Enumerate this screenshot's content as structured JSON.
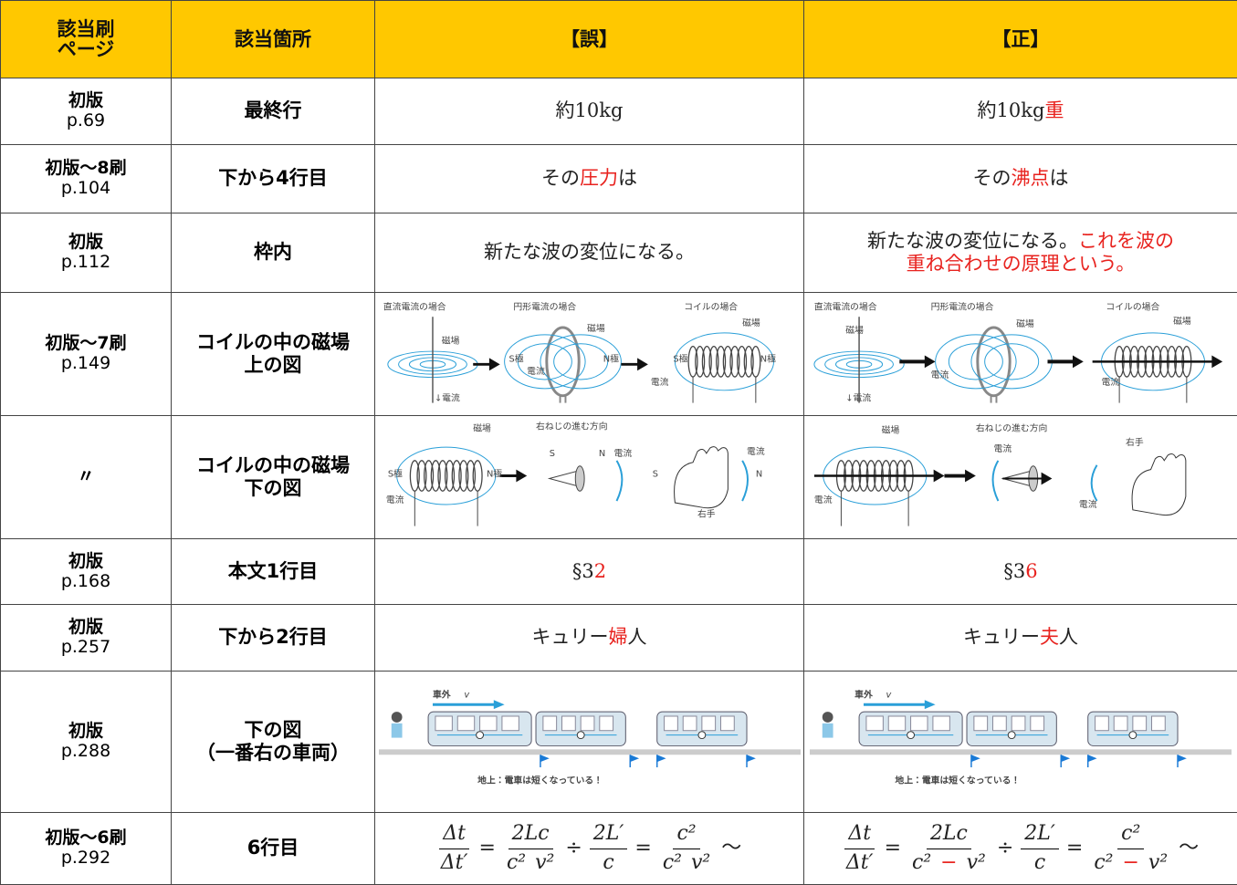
{
  "table": {
    "header": [
      [
        "該当刷",
        "ページ"
      ],
      [
        "該当箇所"
      ],
      [
        "【誤】"
      ],
      [
        "【正】"
      ]
    ],
    "rows": [
      {
        "page": [
          "初版",
          "p.69"
        ],
        "location": [
          "最終行"
        ],
        "wrong": {
          "lines": [
            [
              {
                "text": "約10kg"
              }
            ]
          ]
        },
        "correct": {
          "lines": [
            [
              {
                "text": "約10kg"
              },
              {
                "text": "重",
                "color": "#e8231f"
              }
            ]
          ]
        }
      },
      {
        "page": [
          "初版〜8刷",
          "p.104"
        ],
        "location": [
          "下から4行目"
        ],
        "wrong": {
          "lines": [
            [
              {
                "text": "その"
              },
              {
                "text": "圧力",
                "color": "#e8231f"
              },
              {
                "text": "は"
              }
            ]
          ]
        },
        "correct": {
          "lines": [
            [
              {
                "text": "その"
              },
              {
                "text": "沸点",
                "color": "#e8231f"
              },
              {
                "text": "は"
              }
            ]
          ]
        }
      },
      {
        "page": [
          "初版",
          "p.112"
        ],
        "location": [
          "枠内"
        ],
        "wrong": {
          "lines": [
            [
              {
                "text": "新たな波の変位になる。"
              }
            ]
          ]
        },
        "correct": {
          "lines": [
            [
              {
                "text": "新たな波の変位になる。"
              },
              {
                "text": "これを波の",
                "color": "#e8231f"
              }
            ],
            [
              {
                "text": "重ね合わせの原理という。",
                "color": "#e8231f"
              }
            ]
          ]
        }
      },
      {
        "page": [
          "初版〜7刷",
          "p.149"
        ],
        "location": [
          "コイルの中の磁場",
          "上の図"
        ],
        "wrong": {
          "labels": [
            "直流電流の場合",
            "磁場",
            "↓電流",
            "円形電流の場合",
            "磁場",
            "S極",
            "N極",
            "電流",
            "コイルの場合",
            "磁場",
            "S極",
            "N極",
            "電流"
          ]
        },
        "correct": {
          "labels": [
            "直流電流の場合",
            "磁場",
            "↓電流",
            "円形電流の場合",
            "磁場",
            "電流",
            "コイルの場合",
            "磁場",
            "電流"
          ]
        }
      },
      {
        "page": [
          "〃"
        ],
        "location": [
          "コイルの中の磁場",
          "下の図"
        ],
        "wrong": {
          "labels": [
            "磁場",
            "S極",
            "N極",
            "電流",
            "右ねじの進む方向",
            "S",
            "N",
            "電流",
            "S",
            "N",
            "電流",
            "右手"
          ]
        },
        "correct": {
          "labels": [
            "磁場",
            "電流",
            "右ねじの進む方向",
            "電流",
            "右手",
            "電流"
          ]
        }
      },
      {
        "page": [
          "初版",
          "p.168"
        ],
        "location": [
          "本文1行目"
        ],
        "wrong": {
          "lines": [
            [
              {
                "text": "§3"
              },
              {
                "text": "2",
                "color": "#e8231f"
              }
            ]
          ]
        },
        "correct": {
          "lines": [
            [
              {
                "text": "§3"
              },
              {
                "text": "6",
                "color": "#e8231f"
              }
            ]
          ]
        }
      },
      {
        "page": [
          "初版",
          "p.257"
        ],
        "location": [
          "下から2行目"
        ],
        "wrong": {
          "lines": [
            [
              {
                "text": "キュリー"
              },
              {
                "text": "婦",
                "color": "#e8231f"
              },
              {
                "text": "人"
              }
            ]
          ]
        },
        "correct": {
          "lines": [
            [
              {
                "text": "キュリー"
              },
              {
                "text": "夫",
                "color": "#e8231f"
              },
              {
                "text": "人"
              }
            ]
          ]
        }
      },
      {
        "page": [
          "初版",
          "p.288"
        ],
        "location": [
          "下の図",
          "（一番右の車両）"
        ],
        "wrong": {
          "labels": [
            "車外",
            "v",
            "地上：電車は短くなっている！"
          ]
        },
        "correct": {
          "labels": [
            "車外",
            "v",
            "地上：電車は短くなっている！"
          ]
        }
      },
      {
        "page": [
          "初版〜6刷",
          "p.292"
        ],
        "location": [
          "6行目"
        ],
        "wrong": {
          "formula": [
            {
              "num": [
                {
                  "text": "Δt"
                }
              ],
              "den": [
                {
                  "text": "Δt′"
                }
              ]
            },
            {
              "op": "="
            },
            {
              "num": [
                {
                  "text": "2Lc"
                }
              ],
              "den": [
                {
                  "text": "c²"
                },
                {
                  "text": "v²"
                }
              ]
            },
            {
              "op": "÷"
            },
            {
              "num": [
                {
                  "text": "2L′"
                }
              ],
              "den": [
                {
                  "text": "c"
                }
              ]
            },
            {
              "op": "="
            },
            {
              "num": [
                {
                  "text": "c²"
                }
              ],
              "den": [
                {
                  "text": "c²"
                },
                {
                  "text": "v²"
                }
              ]
            },
            {
              "op": "〜"
            }
          ]
        },
        "correct": {
          "formula": [
            {
              "num": [
                {
                  "text": "Δt"
                }
              ],
              "den": [
                {
                  "text": "Δt′"
                }
              ]
            },
            {
              "op": "="
            },
            {
              "num": [
                {
                  "text": "2Lc"
                }
              ],
              "den": [
                {
                  "text": "c²"
                },
                {
                  "text": "−",
                  "color": "#e8231f"
                },
                {
                  "text": "v²"
                }
              ]
            },
            {
              "op": "÷"
            },
            {
              "num": [
                {
                  "text": "2L′"
                }
              ],
              "den": [
                {
                  "text": "c"
                }
              ]
            },
            {
              "op": "="
            },
            {
              "num": [
                {
                  "text": "c²"
                }
              ],
              "den": [
                {
                  "text": "c²"
                },
                {
                  "text": "−",
                  "color": "#e8231f"
                },
                {
                  "text": "v²"
                }
              ]
            },
            {
              "op": "〜"
            }
          ]
        }
      }
    ]
  }
}
